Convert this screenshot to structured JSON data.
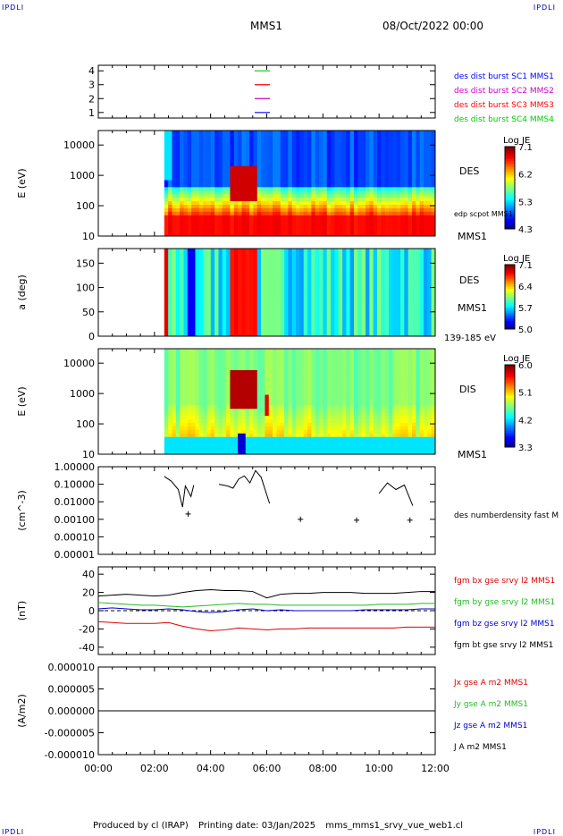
{
  "header": {
    "corner_left": "IPDLI",
    "corner_right": "IPDLI",
    "mission": "MMS1",
    "date": "08/Oct/2022 00:00"
  },
  "footer": {
    "produced_by": "Produced by cl (IRAP)",
    "printing_date": "Printing date: 03/Jan/2025",
    "file": "mms_mms1_srvy_vue_web1.cl",
    "corner_left": "IPDLI",
    "corner_right": "IPDLI"
  },
  "colors": {
    "mms1": "#0000ff",
    "mms2": "#cc00cc",
    "mms3": "#ff0000",
    "mms4": "#00cc00",
    "bx": "#dd0000",
    "by": "#22bb22",
    "bz": "#0000cc",
    "bt": "#000000"
  },
  "chart_data": [
    {
      "type": "line",
      "panel": "burst",
      "x_tick_labels": [
        "00:00",
        "02:00",
        "04:00",
        "06:00",
        "08:00",
        "10:00",
        "12:00"
      ],
      "y_ticks": [
        "1",
        "2",
        "3",
        "4"
      ],
      "ylim": [
        0.6,
        4.4
      ],
      "series": [
        {
          "name": "des dist burst SC1 MMS1",
          "level": 1,
          "color": "#0000ff"
        },
        {
          "name": "des dist burst SC2 MMS2",
          "level": 2,
          "color": "#cc00cc"
        },
        {
          "name": "des dist burst SC3 MMS3",
          "level": 3,
          "color": "#ff0000"
        },
        {
          "name": "des dist burst SC4 MMS4",
          "level": 4,
          "color": "#00cc00"
        }
      ]
    },
    {
      "type": "heatmap",
      "panel": "des-energy",
      "ylabel": "E (eV)",
      "y_ticks": [
        "10",
        "100",
        "1000",
        "10000"
      ],
      "ylim": [
        10,
        30000
      ],
      "data_start_hour": 2.35,
      "label": "DES",
      "label2": "MMS1",
      "extra_label": "edp scpot MMS1",
      "colorbar": {
        "title": "Log JE",
        "ticks": [
          "7.1",
          "6.2",
          "5.3",
          "4.3"
        ],
        "range": [
          4.3,
          7.1
        ]
      }
    },
    {
      "type": "heatmap",
      "panel": "des-pitch",
      "ylabel": "a (deg)",
      "y_ticks": [
        "0",
        "50",
        "100",
        "150"
      ],
      "ylim": [
        0,
        180
      ],
      "data_start_hour": 2.35,
      "label": "DES",
      "label2": "MMS1",
      "energy_range": "139-185 eV",
      "colorbar": {
        "title": "Log JE",
        "ticks": [
          "7.1",
          "6.4",
          "5.7",
          "5.0"
        ],
        "range": [
          5.0,
          7.1
        ]
      }
    },
    {
      "type": "heatmap",
      "panel": "dis-energy",
      "ylabel": "E (eV)",
      "y_ticks": [
        "10",
        "100",
        "1000",
        "10000"
      ],
      "ylim": [
        10,
        30000
      ],
      "data_start_hour": 2.35,
      "label": "DIS",
      "label2": "MMS1",
      "colorbar": {
        "title": "Log JE",
        "ticks": [
          "6.0",
          "5.1",
          "4.2",
          "3.3"
        ],
        "range": [
          3.3,
          6.0
        ]
      }
    },
    {
      "type": "line",
      "panel": "density",
      "ylabel": "(cm^-3)",
      "y_ticks": [
        "1.00000",
        "0.10000",
        "0.01000",
        "0.00100",
        "0.00010",
        "0.00001"
      ],
      "ylim": [
        1e-05,
        1.0
      ],
      "series_name": "des numberdensity fast M",
      "segments": [
        {
          "x": [
            2.35,
            2.6,
            2.85,
            3.0,
            3.1,
            3.3,
            3.4
          ],
          "y": [
            0.28,
            0.15,
            0.05,
            0.005,
            0.08,
            0.02,
            0.09
          ]
        },
        {
          "x": [
            4.3,
            4.6,
            4.8,
            5.0,
            5.2,
            5.4,
            5.6,
            5.8,
            6.1
          ],
          "y": [
            0.1,
            0.08,
            0.06,
            0.2,
            0.3,
            0.12,
            0.6,
            0.25,
            0.008
          ]
        },
        {
          "x": [
            10.0,
            10.3,
            10.6,
            10.9,
            11.2
          ],
          "y": [
            0.03,
            0.12,
            0.05,
            0.09,
            0.006
          ]
        }
      ],
      "points": [
        {
          "x": 3.2,
          "y": 0.002
        },
        {
          "x": 7.2,
          "y": 0.001
        },
        {
          "x": 9.2,
          "y": 0.0009
        },
        {
          "x": 11.1,
          "y": 0.0009
        }
      ]
    },
    {
      "type": "line",
      "panel": "magnetic-field",
      "ylabel": "(nT)",
      "y_ticks": [
        "-40",
        "-20",
        "0",
        "20",
        "40"
      ],
      "ylim": [
        -48,
        48
      ],
      "x": [
        0,
        0.5,
        1,
        1.5,
        2,
        2.5,
        3,
        3.5,
        4,
        4.5,
        5,
        5.5,
        6,
        6.5,
        7,
        7.5,
        8,
        8.5,
        9,
        9.5,
        10,
        10.5,
        11,
        11.5,
        12
      ],
      "series": [
        {
          "name": "fgm bx gse srvy l2 MMS1",
          "color": "#dd0000",
          "values": [
            -12,
            -13,
            -14,
            -14,
            -14,
            -13,
            -17,
            -20,
            -22,
            -21,
            -19,
            -20,
            -21,
            -20,
            -20,
            -19,
            -19,
            -19,
            -19,
            -19,
            -19,
            -19,
            -18,
            -18,
            -18
          ]
        },
        {
          "name": "fgm by gse srvy l2 MMS1",
          "color": "#22bb22",
          "values": [
            9,
            8,
            7,
            6,
            6,
            5,
            4,
            5,
            6,
            7,
            8,
            7,
            7,
            6,
            6,
            6,
            6,
            6,
            6,
            6,
            7,
            7,
            7,
            8,
            8
          ]
        },
        {
          "name": "fgm bz gse srvy l2 MMS1",
          "color": "#0000cc",
          "values": [
            2,
            3,
            2,
            1,
            1,
            2,
            1,
            -1,
            -2,
            -1,
            1,
            2,
            0,
            1,
            0,
            0,
            0,
            0,
            0,
            1,
            1,
            1,
            1,
            2,
            2
          ]
        },
        {
          "name": "fgm bt gse srvy l2 MMS1",
          "color": "#000000",
          "values": [
            16,
            17,
            18,
            17,
            16,
            17,
            20,
            22,
            23,
            22,
            22,
            21,
            14,
            18,
            19,
            19,
            20,
            20,
            20,
            19,
            19,
            19,
            20,
            21,
            21
          ]
        }
      ]
    },
    {
      "type": "line",
      "panel": "current-density",
      "ylabel": "(A/m2)",
      "y_ticks": [
        "0.000010",
        "0.000005",
        "0.000000",
        "-0.000005",
        "-0.000010"
      ],
      "ylim": [
        -1e-05,
        1e-05
      ],
      "x_tick_labels": [
        "00:00",
        "02:00",
        "04:00",
        "06:00",
        "08:00",
        "10:00",
        "12:00"
      ],
      "series": [
        {
          "name": "Jx gse A m2 MMS1",
          "color": "#dd0000"
        },
        {
          "name": "Jy gse A m2 MMS1",
          "color": "#22bb22"
        },
        {
          "name": "Jz gse A m2 MMS1",
          "color": "#0000cc"
        },
        {
          "name": "J A m2 MMS1",
          "color": "#000000"
        }
      ]
    }
  ]
}
